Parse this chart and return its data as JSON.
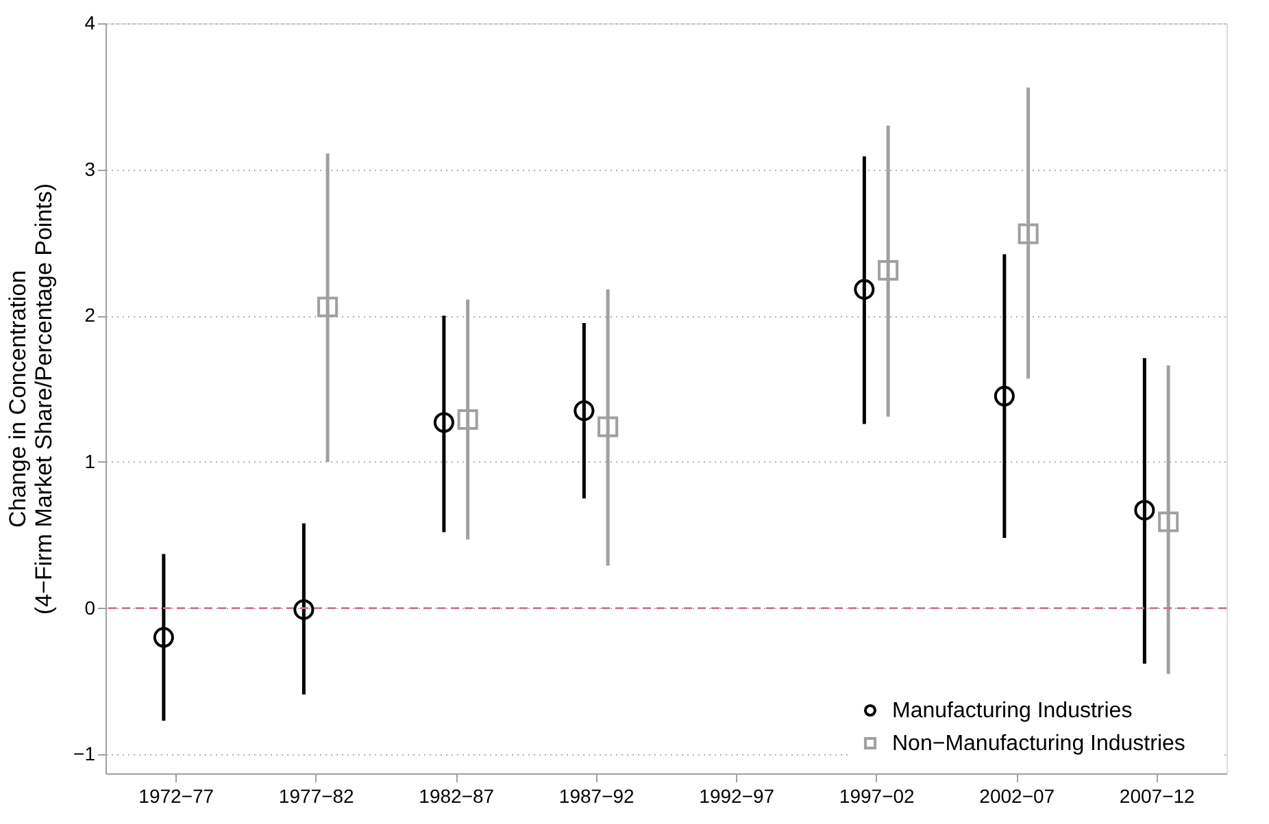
{
  "chart_data": {
    "type": "scatter",
    "ylabel": "Change in Concentration\n(4−Firm Market Share/Percentage Points)",
    "categories": [
      "1972−77",
      "1977−82",
      "1982−87",
      "1987−92",
      "1992−97",
      "1997−02",
      "2002−07",
      "2007−12"
    ],
    "ylim": [
      -1.13,
      4
    ],
    "yticks": [
      {
        "value": -1,
        "label": "−1"
      },
      0,
      1,
      2,
      3,
      4
    ],
    "grid": "y",
    "legend": "bottom right",
    "series": [
      {
        "name": "Manufacturing Industries",
        "color": "#000000",
        "marker": "circle",
        "values": [
          -0.2,
          -0.01,
          1.27,
          1.35,
          null,
          2.18,
          1.45,
          0.67
        ],
        "errors": [
          [
            -0.77,
            0.37
          ],
          [
            -0.59,
            0.58
          ],
          [
            0.52,
            2.0
          ],
          [
            0.75,
            1.95
          ],
          null,
          [
            1.26,
            3.09
          ],
          [
            0.48,
            2.42
          ],
          [
            -0.38,
            1.71
          ]
        ]
      },
      {
        "name": "Non−Manufacturing Industries",
        "color": "#a0a0a0",
        "marker": "square",
        "values": [
          null,
          2.06,
          1.29,
          1.24,
          null,
          2.31,
          2.56,
          0.59
        ],
        "errors": [
          null,
          [
            1.0,
            3.11
          ],
          [
            0.47,
            2.11
          ],
          [
            0.29,
            2.18
          ],
          null,
          [
            1.31,
            3.3
          ],
          [
            1.57,
            3.56
          ],
          [
            -0.45,
            1.66
          ]
        ]
      }
    ],
    "ref_lines": [
      {
        "axis": "y",
        "value": 0,
        "color": "#c8749e",
        "line_style": "dashed"
      }
    ]
  }
}
